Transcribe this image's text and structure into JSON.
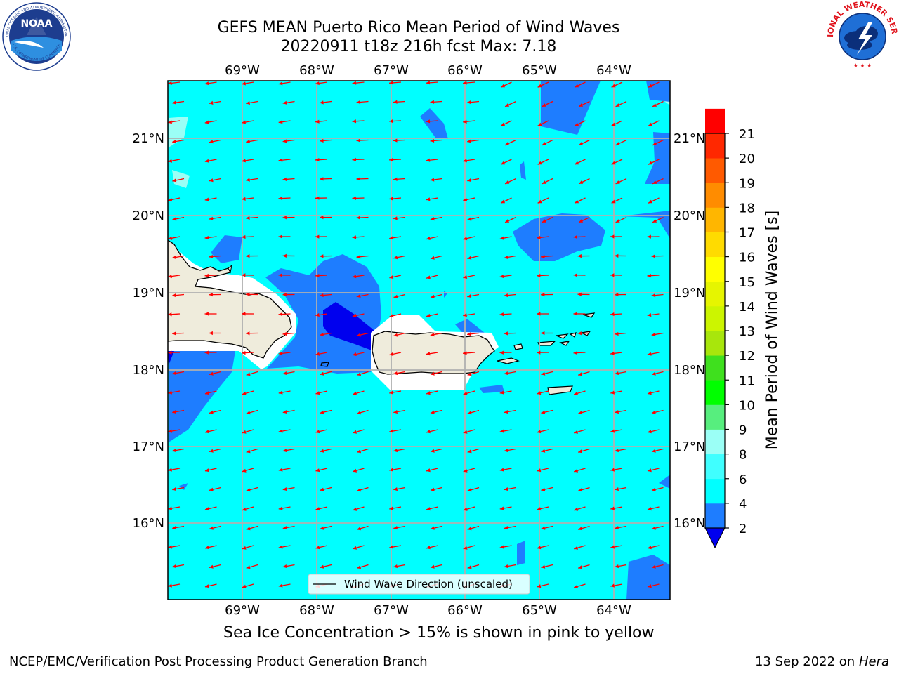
{
  "header": {
    "title_line1": "GEFS MEAN Puerto Rico Mean Period of Wind Waves",
    "title_line2": "20220911 t18z 216h fcst   Max: 7.18"
  },
  "logos": {
    "noaa_text": "NOAA",
    "noaa_ring_text": "NATIONAL OCEANIC AND ATMOSPHERIC ADMINISTRATION",
    "noaa_ring_bottom": "U.S. DEPARTMENT OF COMMERCE",
    "nws_ring_text": "NATIONAL WEATHER SERVICE"
  },
  "map": {
    "lon_labels": [
      "69°W",
      "68°W",
      "67°W",
      "66°W",
      "65°W",
      "64°W"
    ],
    "lat_labels": [
      "21°N",
      "20°N",
      "19°N",
      "18°N",
      "17°N",
      "16°N"
    ],
    "legend_label": "Wind Wave Direction (unscaled)",
    "arrow_color": "#ff0000",
    "ocean_color": "#00ffff",
    "land_color": "#efecdc"
  },
  "colorbar": {
    "label": "Mean Period of Wind Waves [s]",
    "ticks": [
      "2",
      "4",
      "6",
      "8",
      "9",
      "10",
      "11",
      "12",
      "13",
      "14",
      "15",
      "16",
      "17",
      "18",
      "19",
      "20",
      "21"
    ],
    "colors": [
      "#1e7dff",
      "#00ffff",
      "#40ffff",
      "#9bfff6",
      "#57ee7e",
      "#00ff00",
      "#3fe01e",
      "#a8e60c",
      "#ccf500",
      "#e6f500",
      "#ffff00",
      "#ffdb00",
      "#ffb600",
      "#ff8c00",
      "#ff5a00",
      "#ff2800",
      "#ff0000"
    ],
    "under_color": "#0000ee"
  },
  "footer": {
    "note": "Sea Ice Concentration > 15% is shown in pink to yellow",
    "branch": "NCEP/EMC/Verification Post Processing Product Generation Branch",
    "date": "13 Sep 2022 on",
    "machine": "Hera"
  }
}
